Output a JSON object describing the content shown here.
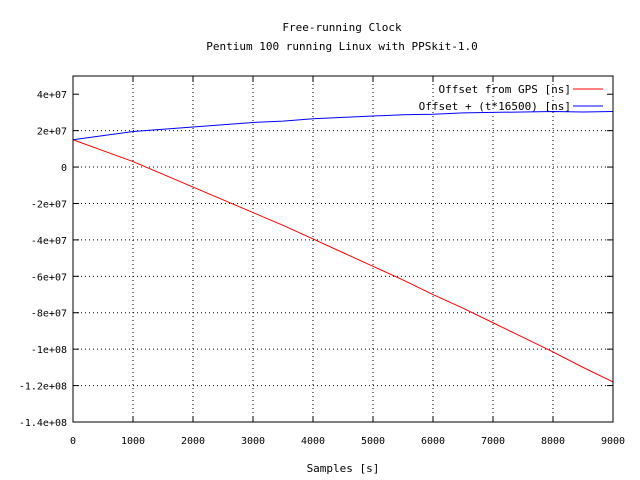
{
  "chart_data": {
    "type": "line",
    "title": "Free-running Clock",
    "subtitle": "Pentium 100 running Linux with PPSkit-1.0",
    "xlabel": "Samples [s]",
    "ylabel": "",
    "xlim": [
      0,
      9000
    ],
    "ylim": [
      -140000000,
      50000000
    ],
    "x_ticks": [
      0,
      1000,
      2000,
      3000,
      4000,
      5000,
      6000,
      7000,
      8000,
      9000
    ],
    "x_tick_labels": [
      "0",
      "1000",
      "2000",
      "3000",
      "4000",
      "5000",
      "6000",
      "7000",
      "8000",
      "9000"
    ],
    "y_ticks": [
      40000000,
      20000000,
      0,
      -20000000,
      -40000000,
      -60000000,
      -80000000,
      -100000000,
      -120000000,
      -140000000
    ],
    "y_tick_labels": [
      "4e+07",
      "2e+07",
      "0",
      "-2e+07",
      "-4e+07",
      "-6e+07",
      "-8e+07",
      "-1e+08",
      "-1.2e+08",
      "-1.4e+08"
    ],
    "grid": true,
    "legend_position": "top-right",
    "series": [
      {
        "name": "Offset from GPS [ns]",
        "color": "#ff0000",
        "x": [
          0,
          500,
          1000,
          1500,
          2000,
          2500,
          3000,
          3500,
          4000,
          4500,
          5000,
          5500,
          6000,
          6500,
          7000,
          7500,
          8000,
          8500,
          9000
        ],
        "y": [
          15000000,
          9000000,
          3000000,
          -4000000,
          -11000000,
          -18000000,
          -25000000,
          -32000000,
          -39500000,
          -47000000,
          -54500000,
          -62000000,
          -70000000,
          -77500000,
          -85500000,
          -93500000,
          -101500000,
          -110000000,
          -118000000
        ]
      },
      {
        "name": "Offset + (t*16500) [ns]",
        "color": "#0000ff",
        "x": [
          0,
          500,
          1000,
          1500,
          2000,
          2500,
          3000,
          3500,
          4000,
          4500,
          5000,
          5500,
          6000,
          6500,
          7000,
          7500,
          8000,
          8500,
          9000
        ],
        "y": [
          15000000,
          17250000,
          19500000,
          20750000,
          22000000,
          23250000,
          24500000,
          25250000,
          26500000,
          27250000,
          28000000,
          28750000,
          29000000,
          29750000,
          30000000,
          30250000,
          30500000,
          30250000,
          30500000
        ]
      }
    ]
  }
}
